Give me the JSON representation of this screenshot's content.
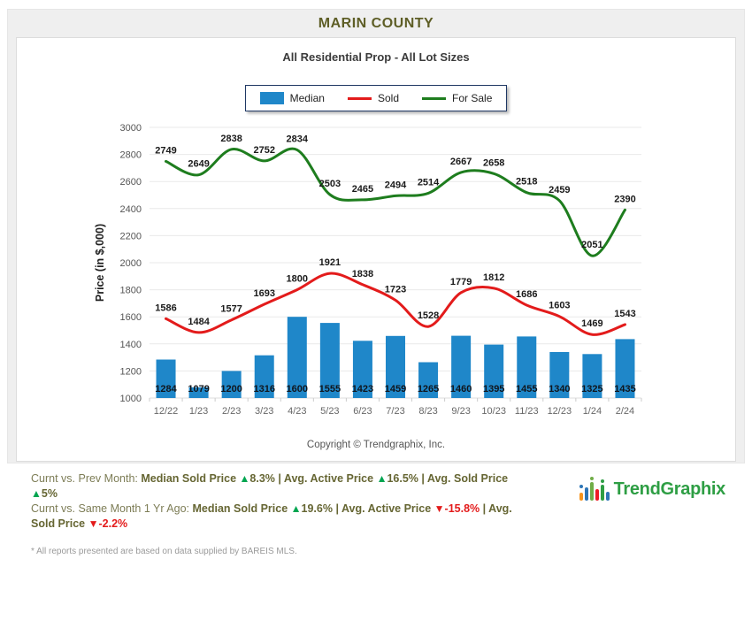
{
  "header": {
    "title": "MARIN COUNTY"
  },
  "copyright": "Copyright © Trendgraphix, Inc.",
  "chart_data": {
    "type": "bar+line",
    "title": "MARIN COUNTY",
    "subtitle": "All Residential Prop - All Lot Sizes",
    "ylabel": "Price (in $,000)",
    "ylim": [
      1000,
      3000
    ],
    "ytick_step": 200,
    "grid": true,
    "legend_position": "top",
    "categories": [
      "12/22",
      "1/23",
      "2/23",
      "3/23",
      "4/23",
      "5/23",
      "6/23",
      "7/23",
      "8/23",
      "9/23",
      "10/23",
      "11/23",
      "12/23",
      "1/24",
      "2/24"
    ],
    "series": [
      {
        "name": "Median",
        "type": "bar",
        "color": "#1f87c9",
        "values": [
          1284,
          1079,
          1200,
          1316,
          1600,
          1555,
          1423,
          1459,
          1265,
          1460,
          1395,
          1455,
          1340,
          1325,
          1435
        ]
      },
      {
        "name": "Sold",
        "type": "line",
        "color": "#e31b1b",
        "values": [
          1586,
          1484,
          1577,
          1693,
          1800,
          1921,
          1838,
          1723,
          1528,
          1779,
          1812,
          1686,
          1603,
          1469,
          1543
        ]
      },
      {
        "name": "For Sale",
        "type": "line",
        "color": "#1e7d1e",
        "values": [
          2749,
          2649,
          2838,
          2752,
          2834,
          2503,
          2465,
          2494,
          2514,
          2667,
          2658,
          2518,
          2459,
          2051,
          2390
        ]
      }
    ]
  },
  "stats": {
    "lines": [
      {
        "segments": [
          {
            "text": "Curnt vs. Prev Month: ",
            "style": "plain"
          },
          {
            "text": "Median Sold Price ",
            "style": "bold"
          },
          {
            "text": "▲",
            "style": "up"
          },
          {
            "text": "8.3%",
            "style": "bold"
          },
          {
            "text": " | ",
            "style": "bold"
          },
          {
            "text": "Avg. Active Price ",
            "style": "bold"
          },
          {
            "text": "▲",
            "style": "up"
          },
          {
            "text": "16.5%",
            "style": "bold"
          },
          {
            "text": " | ",
            "style": "bold"
          },
          {
            "text": "Avg. Sold Price ",
            "style": "bold"
          },
          {
            "text": "▲",
            "style": "up"
          },
          {
            "text": "5%",
            "style": "bold"
          }
        ]
      },
      {
        "segments": [
          {
            "text": "Curnt vs. Same Month 1 Yr Ago: ",
            "style": "plain"
          },
          {
            "text": "Median Sold Price ",
            "style": "bold"
          },
          {
            "text": "▲",
            "style": "up"
          },
          {
            "text": "19.6%",
            "style": "bold"
          },
          {
            "text": " | ",
            "style": "bold"
          },
          {
            "text": "Avg. Active Price ",
            "style": "bold"
          },
          {
            "text": "▼",
            "style": "down"
          },
          {
            "text": "-15.8%",
            "style": "red"
          },
          {
            "text": " | ",
            "style": "bold"
          },
          {
            "text": "Avg. Sold Price ",
            "style": "bold"
          },
          {
            "text": "▼",
            "style": "down"
          },
          {
            "text": "-2.2%",
            "style": "red"
          }
        ]
      }
    ]
  },
  "logo": {
    "text": "TrendGraphix"
  },
  "footnote": "* All reports presented are based on data supplied by BAREIS MLS."
}
